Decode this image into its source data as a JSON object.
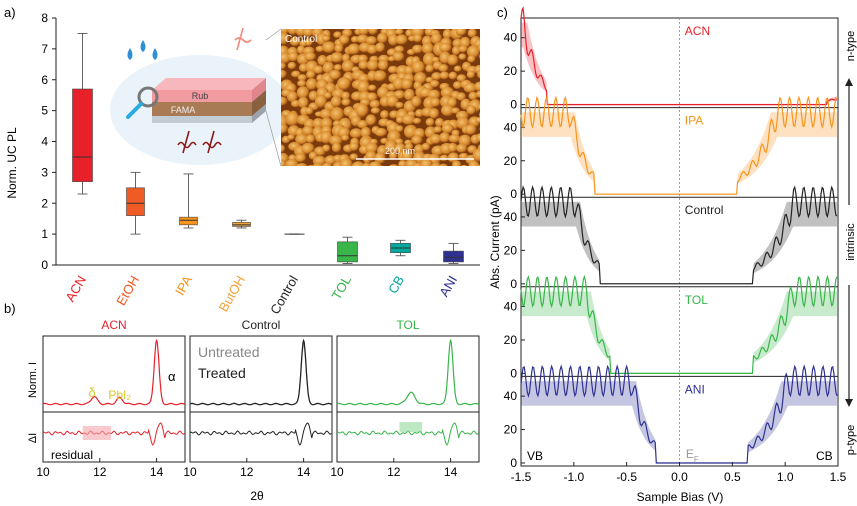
{
  "panel_labels": [
    "a)",
    "b)",
    "c)"
  ],
  "colors": {
    "ACN": "#e8202a",
    "EtOH": "#f05a24",
    "IPA": "#f7941d",
    "ButOH": "#f3a33a",
    "Control": "#222222",
    "TOL": "#39b54a",
    "CB": "#00a99d",
    "ANI": "#2e3192",
    "afm": "#c8721e"
  },
  "panel_a": {
    "ylabel": "Norm. UC PL",
    "inset": {
      "rub_label": "Rub",
      "fama_label": "FAMA"
    },
    "afm": {
      "title": "Control",
      "scalebar": "200 nm"
    },
    "chart_data": {
      "type": "box",
      "categories": [
        "ACN",
        "EtOH",
        "IPA",
        "ButOH",
        "Control",
        "TOL",
        "CB",
        "ANI"
      ],
      "ylim": [
        0,
        8
      ],
      "yticks": [
        0,
        1,
        2,
        3,
        4,
        5,
        6,
        7,
        8
      ],
      "boxes": [
        {
          "name": "ACN",
          "min": 2.3,
          "q1": 2.7,
          "median": 3.5,
          "q3": 5.7,
          "max": 7.5
        },
        {
          "name": "EtOH",
          "min": 1.0,
          "q1": 1.6,
          "median": 2.0,
          "q3": 2.5,
          "max": 3.0
        },
        {
          "name": "IPA",
          "min": 1.2,
          "q1": 1.3,
          "median": 1.45,
          "q3": 1.55,
          "max": 2.95
        },
        {
          "name": "ButOH",
          "min": 1.2,
          "q1": 1.25,
          "median": 1.3,
          "q3": 1.38,
          "max": 1.45
        },
        {
          "name": "Control",
          "min": 1.0,
          "q1": 1.0,
          "median": 1.0,
          "q3": 1.0,
          "max": 1.0
        },
        {
          "name": "TOL",
          "min": 0.05,
          "q1": 0.1,
          "median": 0.3,
          "q3": 0.75,
          "max": 0.9
        },
        {
          "name": "CB",
          "min": 0.3,
          "q1": 0.4,
          "median": 0.55,
          "q3": 0.7,
          "max": 0.8
        },
        {
          "name": "ANI",
          "min": 0.05,
          "q1": 0.1,
          "median": 0.25,
          "q3": 0.45,
          "max": 0.7
        }
      ]
    }
  },
  "panel_b": {
    "titles": [
      "ACN",
      "Control",
      "TOL"
    ],
    "ylabel_top": "Norm. I",
    "ylabel_bottom": "ΔI",
    "xlabel": "2θ",
    "xticks": [
      "10",
      "12",
      "14",
      "10",
      "12",
      "14",
      "10",
      "12",
      "14"
    ],
    "annotations": {
      "alpha": "α",
      "delta": "δ",
      "pbi2": "PbI₂",
      "residual": "residual",
      "untreated": "Untreated",
      "treated": "Treated"
    },
    "chart_data": {
      "type": "line",
      "xlim": [
        10,
        15
      ],
      "series": [
        {
          "name": "ACN",
          "peaks": [
            {
              "x": 14.0,
              "height": 1.0,
              "width": 0.12
            },
            {
              "x": 11.8,
              "height": 0.12,
              "width": 0.15
            },
            {
              "x": 12.7,
              "height": 0.1,
              "width": 0.15
            }
          ]
        },
        {
          "name": "Untreated",
          "peaks": [
            {
              "x": 14.0,
              "height": 0.95,
              "width": 0.12
            }
          ]
        },
        {
          "name": "Treated",
          "peaks": [
            {
              "x": 14.0,
              "height": 1.0,
              "width": 0.12
            }
          ]
        },
        {
          "name": "TOL",
          "peaks": [
            {
              "x": 14.0,
              "height": 1.0,
              "width": 0.12
            },
            {
              "x": 12.6,
              "height": 0.18,
              "width": 0.2
            }
          ]
        }
      ]
    }
  },
  "panel_c": {
    "ylabel": "Abs. Current (pA)",
    "xlabel": "Sample Bias (V)",
    "xticks": [
      "-1.5",
      "-1.0",
      "-0.5",
      "0.0",
      "0.5",
      "1.0",
      "1.5"
    ],
    "yticks": [
      "0",
      "20",
      "40"
    ],
    "vb": "VB",
    "cb": "CB",
    "ef": "E",
    "ef_sub": "F",
    "side_labels": {
      "n": "n-type",
      "intrinsic": "intrinsic",
      "p": "p-type"
    },
    "chart_data": {
      "type": "line",
      "xlim": [
        -1.5,
        1.5
      ],
      "ylim": [
        0,
        50
      ],
      "series": [
        {
          "name": "ACN",
          "left_edge": -1.45,
          "right_edge": 1.7
        },
        {
          "name": "IPA",
          "left_edge": -1.0,
          "right_edge": 0.85
        },
        {
          "name": "Control",
          "left_edge": -0.95,
          "right_edge": 1.0
        },
        {
          "name": "TOL",
          "left_edge": -0.85,
          "right_edge": 1.0
        },
        {
          "name": "ANI",
          "left_edge": -0.42,
          "right_edge": 0.95
        }
      ]
    }
  }
}
